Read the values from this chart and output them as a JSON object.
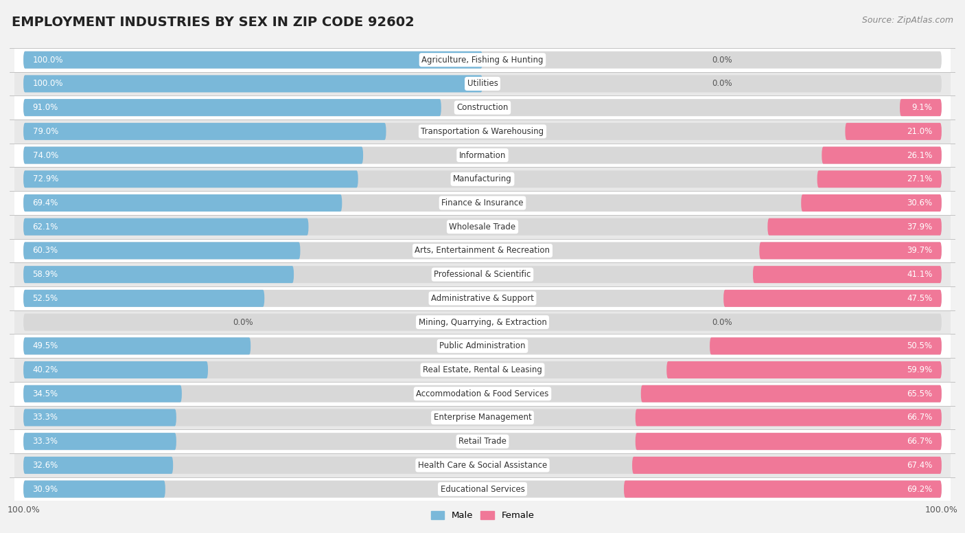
{
  "title": "EMPLOYMENT INDUSTRIES BY SEX IN ZIP CODE 92602",
  "source": "Source: ZipAtlas.com",
  "categories": [
    "Agriculture, Fishing & Hunting",
    "Utilities",
    "Construction",
    "Transportation & Warehousing",
    "Information",
    "Manufacturing",
    "Finance & Insurance",
    "Wholesale Trade",
    "Arts, Entertainment & Recreation",
    "Professional & Scientific",
    "Administrative & Support",
    "Mining, Quarrying, & Extraction",
    "Public Administration",
    "Real Estate, Rental & Leasing",
    "Accommodation & Food Services",
    "Enterprise Management",
    "Retail Trade",
    "Health Care & Social Assistance",
    "Educational Services"
  ],
  "male_pct": [
    100.0,
    100.0,
    91.0,
    79.0,
    74.0,
    72.9,
    69.4,
    62.1,
    60.3,
    58.9,
    52.5,
    0.0,
    49.5,
    40.2,
    34.5,
    33.3,
    33.3,
    32.6,
    30.9
  ],
  "female_pct": [
    0.0,
    0.0,
    9.1,
    21.0,
    26.1,
    27.1,
    30.6,
    37.9,
    39.7,
    41.1,
    47.5,
    0.0,
    50.5,
    59.9,
    65.5,
    66.7,
    66.7,
    67.4,
    69.2
  ],
  "male_color": "#7ab8d9",
  "female_color": "#f07898",
  "bg_color": "#f2f2f2",
  "row_color_even": "#ffffff",
  "row_color_odd": "#e8e8e8",
  "bar_bg_color": "#dddddd",
  "title_fontsize": 14,
  "label_fontsize": 8.5,
  "pct_fontsize": 8.5,
  "bar_height": 0.72
}
